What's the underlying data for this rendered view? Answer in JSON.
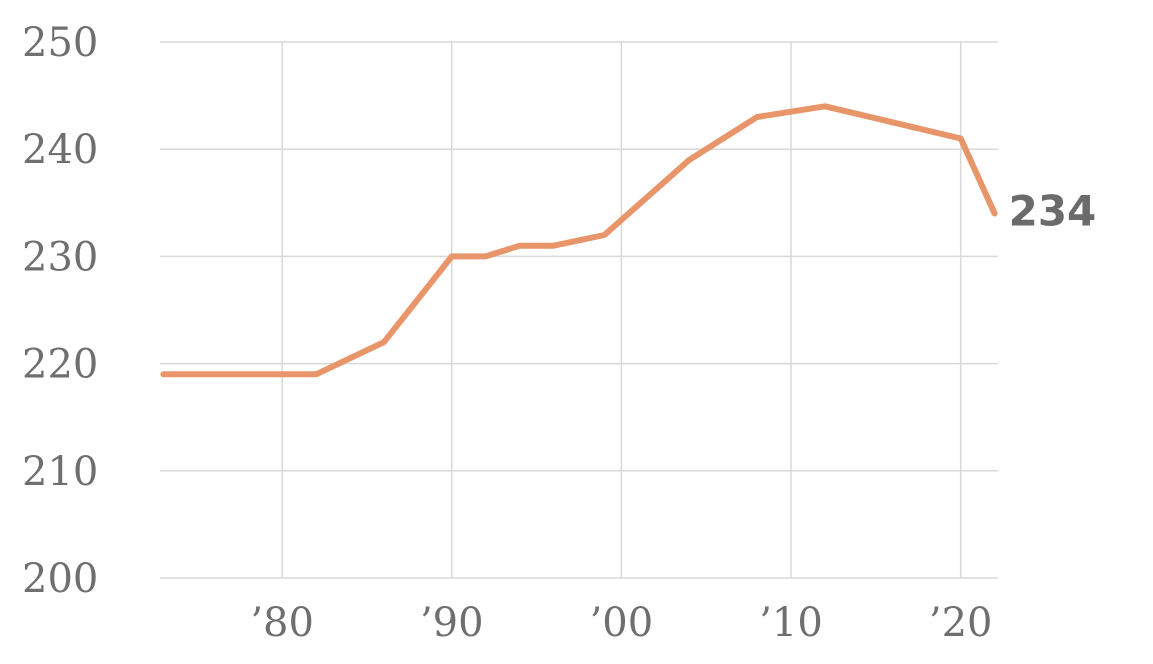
{
  "chart_data": {
    "type": "line",
    "title": "",
    "xlabel": "",
    "ylabel": "",
    "x": [
      1973,
      1982,
      1986,
      1990,
      1992,
      1994,
      1996,
      1999,
      2004,
      2008,
      2012,
      2020,
      2022
    ],
    "series": [
      {
        "values": [
          219,
          219,
          222,
          230,
          230,
          231,
          231,
          232,
          239,
          243,
          244,
          241,
          234
        ],
        "color": "#e8956a"
      }
    ],
    "xlim": [
      1972.8,
      2022.2
    ],
    "ylim": [
      200,
      250
    ],
    "y_ticks": [
      200,
      210,
      220,
      230,
      240,
      250
    ],
    "y_tick_labels": [
      "200",
      "210",
      "220",
      "230",
      "240",
      "250"
    ],
    "x_ticks": [
      1980,
      1990,
      2000,
      2010,
      2020
    ],
    "x_tick_labels": [
      "’80",
      "’90",
      "’00",
      "’10",
      "’20"
    ],
    "grid": true,
    "end_label": "234",
    "colors": {
      "grid": "#d9d9d9",
      "text": "#6f6f6f",
      "end_label": "#6b6b6b"
    }
  }
}
